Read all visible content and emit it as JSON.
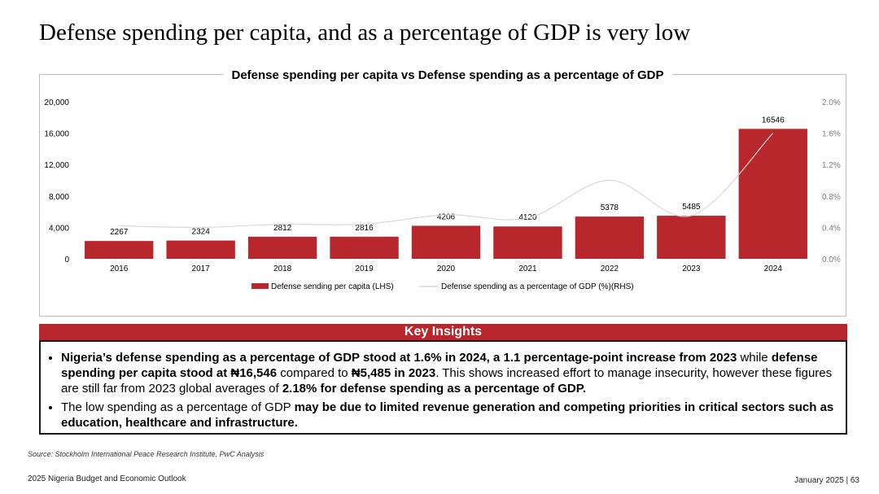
{
  "page": {
    "title": "Defense spending per capita, and as a percentage of GDP is very low"
  },
  "chart_data": {
    "type": "bar",
    "title": "Defense spending per capita vs Defense spending as a percentage of GDP",
    "categories": [
      "2016",
      "2017",
      "2018",
      "2019",
      "2020",
      "2021",
      "2022",
      "2023",
      "2024"
    ],
    "series": [
      {
        "name": "Defense sending per capita (LHS)",
        "type": "bar",
        "axis": "left",
        "values": [
          2267,
          2324,
          2812,
          2816,
          4206,
          4120,
          5378,
          5485,
          16546
        ],
        "color": "#b8272c"
      },
      {
        "name": "Defense spending as a percentage of GDP (%)(RHS)",
        "type": "line",
        "axis": "right",
        "values": [
          0.42,
          0.4,
          0.44,
          0.44,
          0.56,
          0.52,
          1.0,
          0.55,
          1.6
        ],
        "color": "#d9d9d9"
      }
    ],
    "left_axis": {
      "ylim": [
        0,
        20000
      ],
      "ticks": [
        0,
        4000,
        8000,
        12000,
        16000,
        20000
      ],
      "tick_labels": [
        "0",
        "4,000",
        "8,000",
        "12,000",
        "16,000",
        "20,000"
      ]
    },
    "right_axis": {
      "ylim": [
        0,
        2.0
      ],
      "ticks": [
        0,
        0.4,
        0.8,
        1.2,
        1.6,
        2.0
      ],
      "tick_labels": [
        "0.0%",
        "0.4%",
        "0.8%",
        "1.2%",
        "1.6%",
        "2.0%"
      ]
    },
    "legend": "bottom",
    "grid": false
  },
  "key_insights": {
    "header": "Key Insights",
    "bullets": [
      [
        {
          "text": "Nigeria’s defense spending as a percentage of GDP stood at 1.6% in 2024, a 1.1 percentage-point increase from 2023",
          "bold": true
        },
        {
          "text": " while ",
          "bold": false
        },
        {
          "text": "defense spending per capita stood at ₦16,546",
          "bold": true
        },
        {
          "text": " compared to ",
          "bold": false
        },
        {
          "text": "₦5,485 in 2023",
          "bold": true
        },
        {
          "text": ". This shows increased effort to manage insecurity, however these figures are still far from 2023 global averages of ",
          "bold": false
        },
        {
          "text": "2.18% for defense spending as a percentage of GDP.",
          "bold": true
        }
      ],
      [
        {
          "text": "The low spending as a percentage of GDP ",
          "bold": false
        },
        {
          "text": "may be due to limited revenue generation and competing priorities in critical sectors such as education, healthcare and infrastructure.",
          "bold": true
        }
      ]
    ]
  },
  "footer": {
    "source": "Source: Stockholm International Peace Research Institute, PwC Analysis",
    "left": "2025 Nigeria Budget and Economic Outlook",
    "right": "January 2025 | 63"
  }
}
